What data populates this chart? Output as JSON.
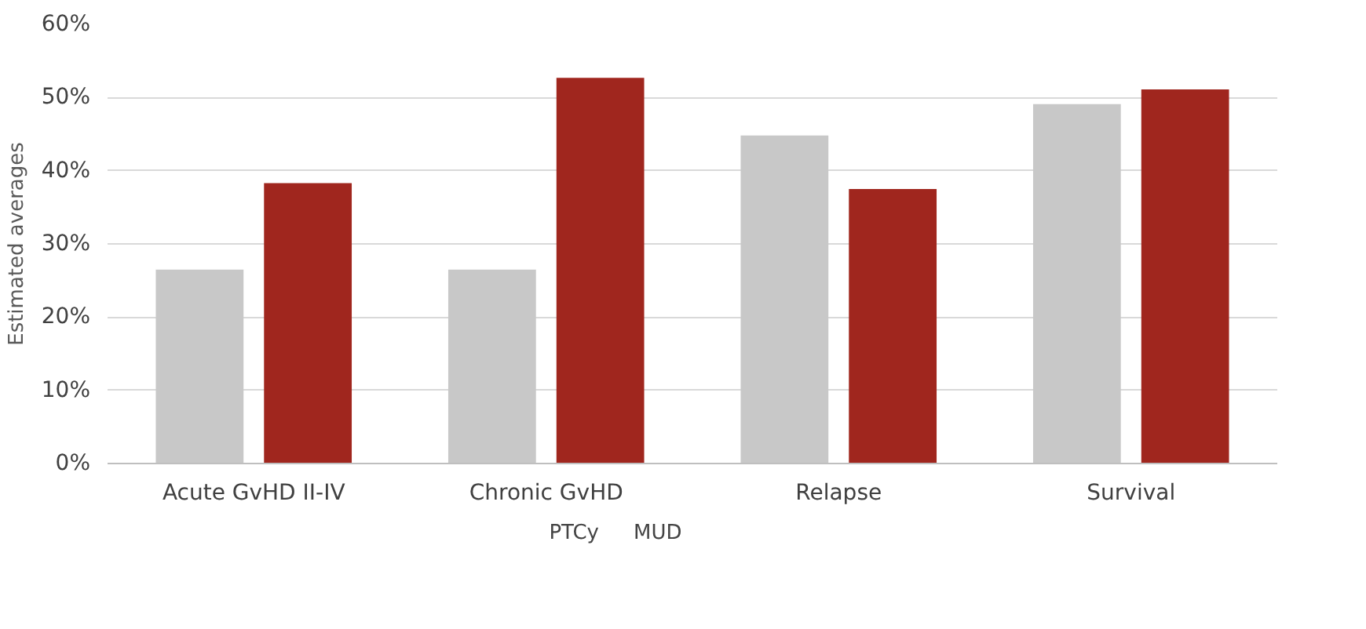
{
  "chart_data": {
    "type": "bar",
    "ylabel": "Estimated averages",
    "categories": [
      "Acute GvHD II-IV",
      "Chronic GvHD",
      "Relapse",
      "Survival"
    ],
    "series": [
      {
        "name": "PTCy",
        "color": "#c8c8c8",
        "values": [
          26.5,
          26.5,
          44.8,
          49.1
        ]
      },
      {
        "name": "MUD",
        "color": "#a0261e",
        "values": [
          38.3,
          52.7,
          37.5,
          51.1
        ]
      }
    ],
    "ylim": [
      0,
      60
    ],
    "yticks": [
      {
        "value": 0,
        "label": "0%"
      },
      {
        "value": 10,
        "label": "10%"
      },
      {
        "value": 20,
        "label": "20%"
      },
      {
        "value": 30,
        "label": "30%"
      },
      {
        "value": 40,
        "label": "40%"
      },
      {
        "value": 50,
        "label": "50%"
      },
      {
        "value": 60,
        "label": "60%"
      }
    ],
    "grid": "y",
    "legend": "bottom"
  }
}
